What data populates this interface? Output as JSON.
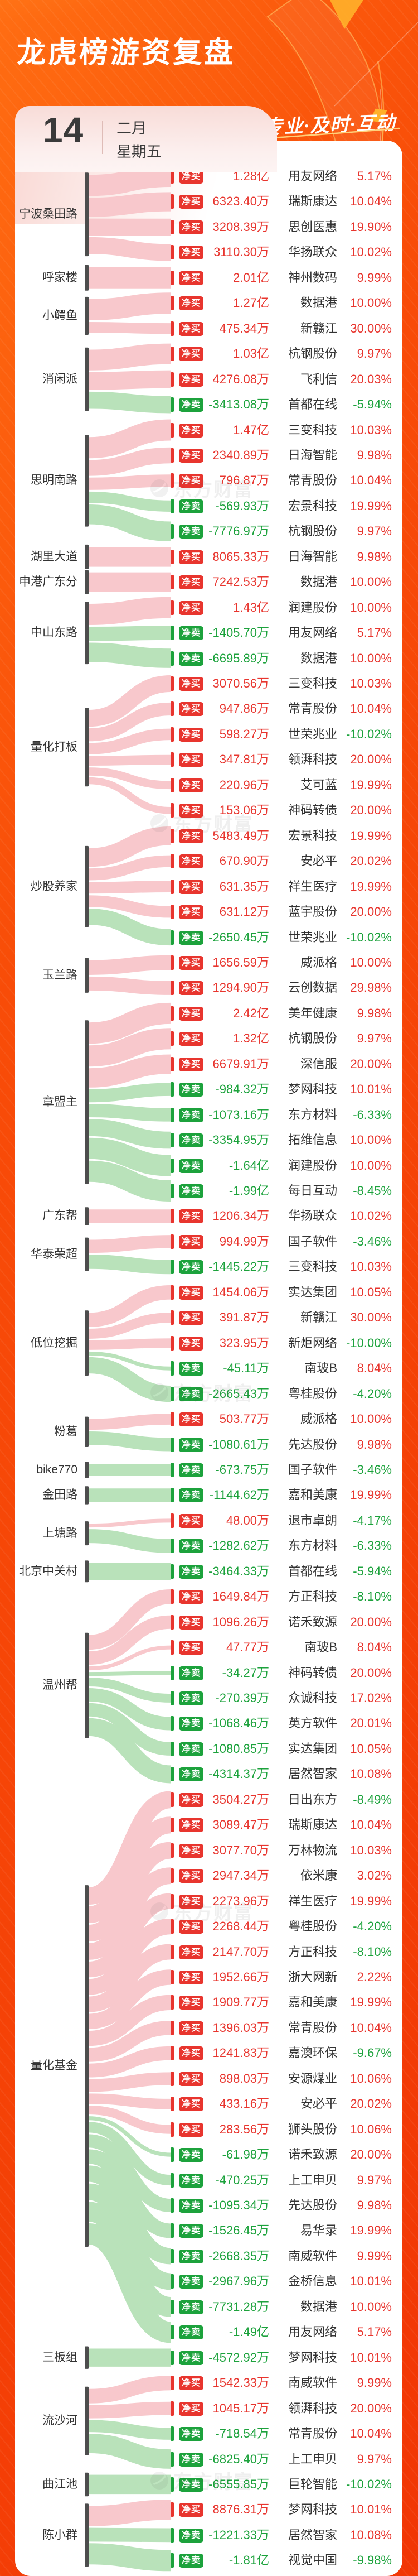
{
  "header": {
    "title": "龙虎榜游资复盘",
    "date_day": "14",
    "date_month": "二月",
    "date_weekday": "星期五",
    "slogan": "权威·专业·及时·互动"
  },
  "watermark_text": "东方财富",
  "colors": {
    "up_red": "#e8352e",
    "down_green": "#1ca23c",
    "ribbon_buy_pink": "#f8c8cc",
    "ribbon_sell_green": "#b9e2ba",
    "group_bar": "#4d4d4d",
    "background_orange": "#f13605"
  },
  "chart_data": {
    "type": "sankey",
    "badge_buy_label": "净买",
    "badge_sell_label": "净卖",
    "amount_unit_note": "wan = 净买/净卖金额(万元), 显示文本见 amount",
    "groups": [
      {
        "name": "宁波桑田路",
        "rows": [
          {
            "side": "buy",
            "amount": "1.28亿",
            "wan": 12800,
            "stock": "用友网络",
            "pct": "5.17%"
          },
          {
            "side": "buy",
            "amount": "6323.40万",
            "wan": 6323,
            "stock": "瑞斯康达",
            "pct": "10.04%"
          },
          {
            "side": "buy",
            "amount": "3208.39万",
            "wan": 3208,
            "stock": "思创医惠",
            "pct": "19.90%"
          },
          {
            "side": "buy",
            "amount": "3110.30万",
            "wan": 3110,
            "stock": "华扬联众",
            "pct": "10.02%"
          }
        ]
      },
      {
        "name": "呼家楼",
        "rows": [
          {
            "side": "buy",
            "amount": "2.01亿",
            "wan": 20100,
            "stock": "神州数码",
            "pct": "9.99%"
          }
        ]
      },
      {
        "name": "小鳄鱼",
        "rows": [
          {
            "side": "buy",
            "amount": "1.27亿",
            "wan": 12700,
            "stock": "数据港",
            "pct": "10.00%"
          },
          {
            "side": "buy",
            "amount": "475.34万",
            "wan": 475,
            "stock": "新赣江",
            "pct": "30.00%"
          }
        ]
      },
      {
        "name": "消闲派",
        "rows": [
          {
            "side": "buy",
            "amount": "1.03亿",
            "wan": 10300,
            "stock": "杭钢股份",
            "pct": "9.97%"
          },
          {
            "side": "buy",
            "amount": "4276.08万",
            "wan": 4276,
            "stock": "飞利信",
            "pct": "20.03%"
          },
          {
            "side": "sell",
            "amount": "-3413.08万",
            "wan": 3413,
            "stock": "首都在线",
            "pct": "-5.94%"
          }
        ]
      },
      {
        "name": "思明南路",
        "rows": [
          {
            "side": "buy",
            "amount": "1.47亿",
            "wan": 14700,
            "stock": "三变科技",
            "pct": "10.03%"
          },
          {
            "side": "buy",
            "amount": "2340.89万",
            "wan": 2341,
            "stock": "日海智能",
            "pct": "9.98%"
          },
          {
            "side": "buy",
            "amount": "796.87万",
            "wan": 797,
            "stock": "常青股份",
            "pct": "10.04%"
          },
          {
            "side": "sell",
            "amount": "-569.93万",
            "wan": 570,
            "stock": "宏景科技",
            "pct": "19.99%"
          },
          {
            "side": "sell",
            "amount": "-7776.97万",
            "wan": 7777,
            "stock": "杭钢股份",
            "pct": "9.97%"
          }
        ]
      },
      {
        "name": "湖里大道",
        "rows": [
          {
            "side": "buy",
            "amount": "8065.33万",
            "wan": 8065,
            "stock": "日海智能",
            "pct": "9.98%"
          }
        ]
      },
      {
        "name": "申港广东分",
        "rows": [
          {
            "side": "buy",
            "amount": "7242.53万",
            "wan": 7243,
            "stock": "数据港",
            "pct": "10.00%"
          }
        ]
      },
      {
        "name": "中山东路",
        "rows": [
          {
            "side": "buy",
            "amount": "1.43亿",
            "wan": 14300,
            "stock": "润建股份",
            "pct": "10.00%"
          },
          {
            "side": "sell",
            "amount": "-1405.70万",
            "wan": 1406,
            "stock": "用友网络",
            "pct": "5.17%"
          },
          {
            "side": "sell",
            "amount": "-6695.89万",
            "wan": 6696,
            "stock": "数据港",
            "pct": "10.00%"
          }
        ]
      },
      {
        "name": "量化打板",
        "rows": [
          {
            "side": "buy",
            "amount": "3070.56万",
            "wan": 3071,
            "stock": "三变科技",
            "pct": "10.03%"
          },
          {
            "side": "buy",
            "amount": "947.86万",
            "wan": 948,
            "stock": "常青股份",
            "pct": "10.04%"
          },
          {
            "side": "buy",
            "amount": "598.27万",
            "wan": 598,
            "stock": "世荣兆业",
            "pct": "-10.02%"
          },
          {
            "side": "buy",
            "amount": "347.81万",
            "wan": 348,
            "stock": "领湃科技",
            "pct": "20.00%"
          },
          {
            "side": "buy",
            "amount": "220.96万",
            "wan": 221,
            "stock": "艾可蓝",
            "pct": "19.99%"
          },
          {
            "side": "buy",
            "amount": "153.06万",
            "wan": 153,
            "stock": "神码转债",
            "pct": "20.00%"
          }
        ]
      },
      {
        "name": "炒股养家",
        "rows": [
          {
            "side": "buy",
            "amount": "5483.49万",
            "wan": 5483,
            "stock": "宏景科技",
            "pct": "19.99%"
          },
          {
            "side": "buy",
            "amount": "670.90万",
            "wan": 671,
            "stock": "安必平",
            "pct": "20.02%"
          },
          {
            "side": "buy",
            "amount": "631.35万",
            "wan": 631,
            "stock": "祥生医疗",
            "pct": "19.99%"
          },
          {
            "side": "buy",
            "amount": "631.12万",
            "wan": 631,
            "stock": "蓝宇股份",
            "pct": "20.00%"
          },
          {
            "side": "sell",
            "amount": "-2650.45万",
            "wan": 2650,
            "stock": "世荣兆业",
            "pct": "-10.02%"
          }
        ]
      },
      {
        "name": "玉兰路",
        "rows": [
          {
            "side": "buy",
            "amount": "1656.59万",
            "wan": 1657,
            "stock": "威派格",
            "pct": "10.00%"
          },
          {
            "side": "buy",
            "amount": "1294.90万",
            "wan": 1295,
            "stock": "云创数据",
            "pct": "29.98%"
          }
        ]
      },
      {
        "name": "章盟主",
        "rows": [
          {
            "side": "buy",
            "amount": "2.42亿",
            "wan": 24200,
            "stock": "美年健康",
            "pct": "9.98%"
          },
          {
            "side": "buy",
            "amount": "1.32亿",
            "wan": 13200,
            "stock": "杭钢股份",
            "pct": "9.97%"
          },
          {
            "side": "buy",
            "amount": "6679.91万",
            "wan": 6680,
            "stock": "深信服",
            "pct": "20.00%"
          },
          {
            "side": "sell",
            "amount": "-984.32万",
            "wan": 984,
            "stock": "梦网科技",
            "pct": "10.01%"
          },
          {
            "side": "sell",
            "amount": "-1073.16万",
            "wan": 1073,
            "stock": "东方材料",
            "pct": "-6.33%"
          },
          {
            "side": "sell",
            "amount": "-3354.95万",
            "wan": 3355,
            "stock": "拓维信息",
            "pct": "10.00%"
          },
          {
            "side": "sell",
            "amount": "-1.64亿",
            "wan": 16400,
            "stock": "润建股份",
            "pct": "10.00%"
          },
          {
            "side": "sell",
            "amount": "-1.99亿",
            "wan": 19900,
            "stock": "每日互动",
            "pct": "-8.45%"
          }
        ]
      },
      {
        "name": "广东帮",
        "rows": [
          {
            "side": "buy",
            "amount": "1206.34万",
            "wan": 1206,
            "stock": "华扬联众",
            "pct": "10.02%"
          }
        ]
      },
      {
        "name": "华泰荣超",
        "rows": [
          {
            "side": "buy",
            "amount": "994.99万",
            "wan": 995,
            "stock": "国子软件",
            "pct": "-3.46%"
          },
          {
            "side": "sell",
            "amount": "-1445.22万",
            "wan": 1445,
            "stock": "三变科技",
            "pct": "10.03%"
          }
        ]
      },
      {
        "name": "低位挖掘",
        "rows": [
          {
            "side": "buy",
            "amount": "1454.06万",
            "wan": 1454,
            "stock": "实达集团",
            "pct": "10.05%"
          },
          {
            "side": "buy",
            "amount": "391.87万",
            "wan": 392,
            "stock": "新赣江",
            "pct": "30.00%"
          },
          {
            "side": "buy",
            "amount": "323.95万",
            "wan": 324,
            "stock": "新炬网络",
            "pct": "-10.00%"
          },
          {
            "side": "sell",
            "amount": "-45.11万",
            "wan": 45,
            "stock": "南玻B",
            "pct": "8.04%"
          },
          {
            "side": "sell",
            "amount": "-2665.43万",
            "wan": 2665,
            "stock": "粤桂股份",
            "pct": "-4.20%"
          }
        ]
      },
      {
        "name": "粉葛",
        "rows": [
          {
            "side": "buy",
            "amount": "503.77万",
            "wan": 504,
            "stock": "威派格",
            "pct": "10.00%"
          },
          {
            "side": "sell",
            "amount": "-1080.61万",
            "wan": 1081,
            "stock": "先达股份",
            "pct": "9.98%"
          }
        ]
      },
      {
        "name": "bike770",
        "rows": [
          {
            "side": "sell",
            "amount": "-673.75万",
            "wan": 674,
            "stock": "国子软件",
            "pct": "-3.46%"
          }
        ]
      },
      {
        "name": "金田路",
        "rows": [
          {
            "side": "sell",
            "amount": "-1144.62万",
            "wan": 1145,
            "stock": "嘉和美康",
            "pct": "19.99%"
          }
        ]
      },
      {
        "name": "上塘路",
        "rows": [
          {
            "side": "buy",
            "amount": "48.00万",
            "wan": 48,
            "stock": "退市卓朗",
            "pct": "-4.17%"
          },
          {
            "side": "sell",
            "amount": "-1282.62万",
            "wan": 1283,
            "stock": "东方材料",
            "pct": "-6.33%"
          }
        ]
      },
      {
        "name": "北京中关村",
        "rows": [
          {
            "side": "sell",
            "amount": "-3464.33万",
            "wan": 3464,
            "stock": "首都在线",
            "pct": "-5.94%"
          }
        ]
      },
      {
        "name": "温州帮",
        "rows": [
          {
            "side": "buy",
            "amount": "1649.84万",
            "wan": 1650,
            "stock": "方正科技",
            "pct": "-8.10%"
          },
          {
            "side": "buy",
            "amount": "1096.26万",
            "wan": 1096,
            "stock": "诺禾致源",
            "pct": "20.00%"
          },
          {
            "side": "buy",
            "amount": "47.77万",
            "wan": 48,
            "stock": "南玻B",
            "pct": "8.04%"
          },
          {
            "side": "sell",
            "amount": "-34.27万",
            "wan": 34,
            "stock": "神码转债",
            "pct": "20.00%"
          },
          {
            "side": "sell",
            "amount": "-270.39万",
            "wan": 270,
            "stock": "众诚科技",
            "pct": "17.02%"
          },
          {
            "side": "sell",
            "amount": "-1068.46万",
            "wan": 1068,
            "stock": "英方软件",
            "pct": "20.01%"
          },
          {
            "side": "sell",
            "amount": "-1080.85万",
            "wan": 1081,
            "stock": "实达集团",
            "pct": "10.05%"
          },
          {
            "side": "sell",
            "amount": "-4314.37万",
            "wan": 4314,
            "stock": "居然智家",
            "pct": "10.08%"
          }
        ]
      },
      {
        "name": "量化基金",
        "rows": [
          {
            "side": "buy",
            "amount": "3504.27万",
            "wan": 3504,
            "stock": "日出东方",
            "pct": "-8.49%"
          },
          {
            "side": "buy",
            "amount": "3089.47万",
            "wan": 3089,
            "stock": "瑞斯康达",
            "pct": "10.04%"
          },
          {
            "side": "buy",
            "amount": "3077.70万",
            "wan": 3078,
            "stock": "万林物流",
            "pct": "10.03%"
          },
          {
            "side": "buy",
            "amount": "2947.34万",
            "wan": 2947,
            "stock": "依米康",
            "pct": "3.02%"
          },
          {
            "side": "buy",
            "amount": "2273.96万",
            "wan": 2274,
            "stock": "祥生医疗",
            "pct": "19.99%"
          },
          {
            "side": "buy",
            "amount": "2268.44万",
            "wan": 2268,
            "stock": "粤桂股份",
            "pct": "-4.20%"
          },
          {
            "side": "buy",
            "amount": "2147.70万",
            "wan": 2148,
            "stock": "方正科技",
            "pct": "-8.10%"
          },
          {
            "side": "buy",
            "amount": "1952.66万",
            "wan": 1953,
            "stock": "浙大网新",
            "pct": "2.22%"
          },
          {
            "side": "buy",
            "amount": "1909.77万",
            "wan": 1910,
            "stock": "嘉和美康",
            "pct": "19.99%"
          },
          {
            "side": "buy",
            "amount": "1396.03万",
            "wan": 1396,
            "stock": "常青股份",
            "pct": "10.04%"
          },
          {
            "side": "buy",
            "amount": "1241.83万",
            "wan": 1242,
            "stock": "嘉澳环保",
            "pct": "-9.67%"
          },
          {
            "side": "buy",
            "amount": "898.03万",
            "wan": 898,
            "stock": "安源煤业",
            "pct": "10.06%"
          },
          {
            "side": "buy",
            "amount": "433.16万",
            "wan": 433,
            "stock": "安必平",
            "pct": "20.02%"
          },
          {
            "side": "buy",
            "amount": "283.56万",
            "wan": 284,
            "stock": "狮头股份",
            "pct": "10.06%"
          },
          {
            "side": "sell",
            "amount": "-61.98万",
            "wan": 62,
            "stock": "诺禾致源",
            "pct": "20.00%"
          },
          {
            "side": "sell",
            "amount": "-470.25万",
            "wan": 470,
            "stock": "上工申贝",
            "pct": "9.97%"
          },
          {
            "side": "sell",
            "amount": "-1095.34万",
            "wan": 1095,
            "stock": "先达股份",
            "pct": "9.98%"
          },
          {
            "side": "sell",
            "amount": "-1526.45万",
            "wan": 1526,
            "stock": "易华录",
            "pct": "19.99%"
          },
          {
            "side": "sell",
            "amount": "-2668.35万",
            "wan": 2668,
            "stock": "南威软件",
            "pct": "9.99%"
          },
          {
            "side": "sell",
            "amount": "-2967.96万",
            "wan": 2968,
            "stock": "金桥信息",
            "pct": "10.01%"
          },
          {
            "side": "sell",
            "amount": "-7731.28万",
            "wan": 7731,
            "stock": "数据港",
            "pct": "10.00%"
          },
          {
            "side": "sell",
            "amount": "-1.49亿",
            "wan": 14900,
            "stock": "用友网络",
            "pct": "5.17%"
          }
        ]
      },
      {
        "name": "三板组",
        "rows": [
          {
            "side": "sell",
            "amount": "-4572.92万",
            "wan": 4573,
            "stock": "梦网科技",
            "pct": "10.01%"
          }
        ]
      },
      {
        "name": "流沙河",
        "rows": [
          {
            "side": "buy",
            "amount": "1542.33万",
            "wan": 1542,
            "stock": "南威软件",
            "pct": "9.99%"
          },
          {
            "side": "buy",
            "amount": "1045.17万",
            "wan": 1045,
            "stock": "领湃科技",
            "pct": "20.00%"
          },
          {
            "side": "sell",
            "amount": "-718.54万",
            "wan": 719,
            "stock": "常青股份",
            "pct": "10.04%"
          },
          {
            "side": "sell",
            "amount": "-6825.40万",
            "wan": 6825,
            "stock": "上工申贝",
            "pct": "9.97%"
          }
        ]
      },
      {
        "name": "曲江池",
        "rows": [
          {
            "side": "sell",
            "amount": "-6555.85万",
            "wan": 6556,
            "stock": "巨轮智能",
            "pct": "-10.02%"
          }
        ]
      },
      {
        "name": "陈小群",
        "rows": [
          {
            "side": "buy",
            "amount": "8876.31万",
            "wan": 8876,
            "stock": "梦网科技",
            "pct": "10.01%"
          },
          {
            "side": "sell",
            "amount": "-1221.33万",
            "wan": 1221,
            "stock": "居然智家",
            "pct": "10.08%"
          },
          {
            "side": "sell",
            "amount": "-1.81亿",
            "wan": 18100,
            "stock": "视觉中国",
            "pct": "-9.98%"
          }
        ]
      }
    ]
  }
}
